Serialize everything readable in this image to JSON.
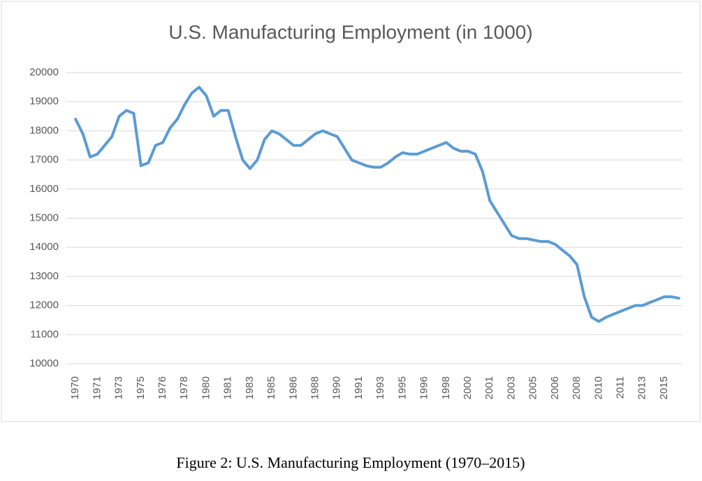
{
  "chart_data": {
    "type": "line",
    "title": "U.S. Manufacturing Employment (in 1000)",
    "caption": "Figure 2: U.S. Manufacturing Employment (1970–2015)",
    "categories": [
      "1970",
      null,
      null,
      "1971",
      null,
      null,
      "1973",
      null,
      null,
      "1975",
      null,
      null,
      "1976",
      null,
      null,
      "1978",
      null,
      null,
      "1980",
      null,
      null,
      "1981",
      null,
      null,
      "1983",
      null,
      null,
      "1985",
      null,
      null,
      "1986",
      null,
      null,
      "1988",
      null,
      null,
      "1990",
      null,
      null,
      "1991",
      null,
      null,
      "1993",
      null,
      null,
      "1995",
      null,
      null,
      "1996",
      null,
      null,
      "1998",
      null,
      null,
      "2000",
      null,
      null,
      "2001",
      null,
      null,
      "2003",
      null,
      null,
      "2005",
      null,
      null,
      "2006",
      null,
      null,
      "2008",
      null,
      null,
      "2010",
      null,
      null,
      "2011",
      null,
      null,
      "2013",
      null,
      null,
      "2015",
      null,
      null
    ],
    "series": [
      {
        "color": "#5b9bd5",
        "values": [
          18400,
          17900,
          17100,
          17200,
          17500,
          17800,
          18500,
          18700,
          18600,
          16800,
          16900,
          17500,
          17600,
          18100,
          18400,
          18900,
          19300,
          19500,
          19200,
          18500,
          18700,
          18700,
          17800,
          17000,
          16700,
          17000,
          17700,
          18000,
          17900,
          17700,
          17500,
          17500,
          17700,
          17900,
          18000,
          17900,
          17800,
          17400,
          17000,
          16900,
          16800,
          16750,
          16750,
          16900,
          17100,
          17250,
          17200,
          17200,
          17300,
          17400,
          17500,
          17600,
          17400,
          17300,
          17300,
          17200,
          16600,
          15600,
          15200,
          14800,
          14400,
          14300,
          14300,
          14250,
          14200,
          14200,
          14100,
          13900,
          13700,
          13400,
          12300,
          11600,
          11450,
          11600,
          11700,
          11800,
          11900,
          12000,
          12000,
          12100,
          12200,
          12300,
          12300,
          12250
        ]
      }
    ],
    "ylim": [
      10000,
      20000
    ],
    "yticks": [
      10000,
      11000,
      12000,
      13000,
      14000,
      15000,
      16000,
      17000,
      18000,
      19000,
      20000
    ],
    "grid": true
  }
}
